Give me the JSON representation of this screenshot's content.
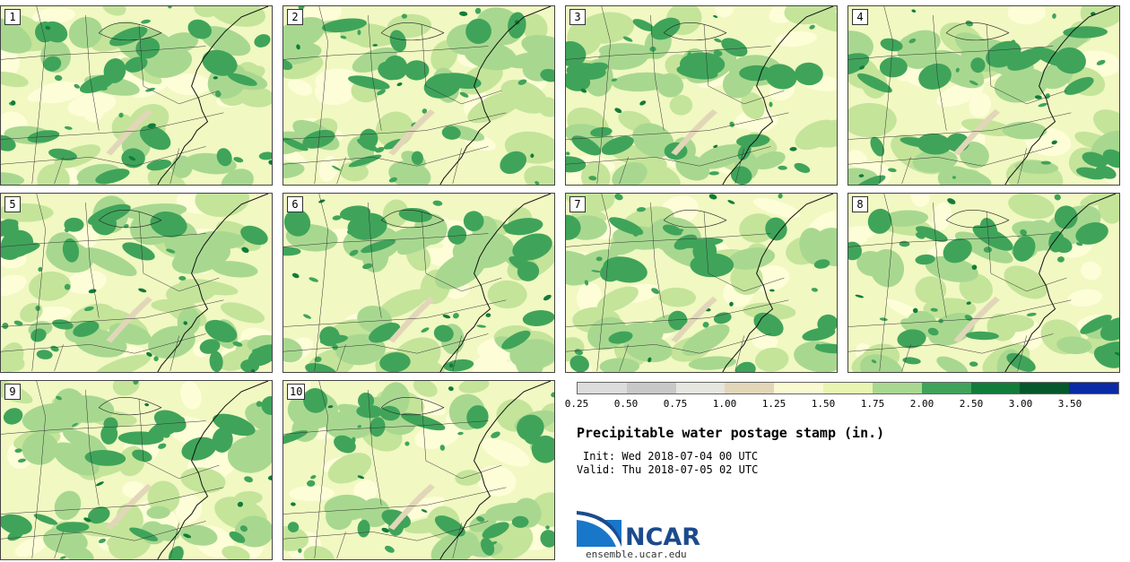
{
  "panels": [
    {
      "label": "1"
    },
    {
      "label": "2"
    },
    {
      "label": "3"
    },
    {
      "label": "4"
    },
    {
      "label": "5"
    },
    {
      "label": "6"
    },
    {
      "label": "7"
    },
    {
      "label": "8"
    },
    {
      "label": "9"
    },
    {
      "label": "10"
    }
  ],
  "colorbar": {
    "colors": [
      "#dcdcdc",
      "#c8c8c8",
      "#e6e6e0",
      "#e2d6b8",
      "#fafad2",
      "#e8f5b0",
      "#a8d890",
      "#3fa45a",
      "#127c3a",
      "#04582a",
      "#0a2aa8"
    ],
    "ticks": [
      "0.25",
      "0.50",
      "0.75",
      "1.00",
      "1.25",
      "1.50",
      "1.75",
      "2.00",
      "2.50",
      "3.00",
      "3.50"
    ]
  },
  "legend": {
    "title": "Precipitable water postage stamp (in.)",
    "init": "Init: Wed 2018-07-04 00 UTC",
    "valid": "Valid: Thu 2018-07-05 02 UTC"
  },
  "logo": {
    "text": "NCAR",
    "site": "ensemble.ucar.edu"
  }
}
